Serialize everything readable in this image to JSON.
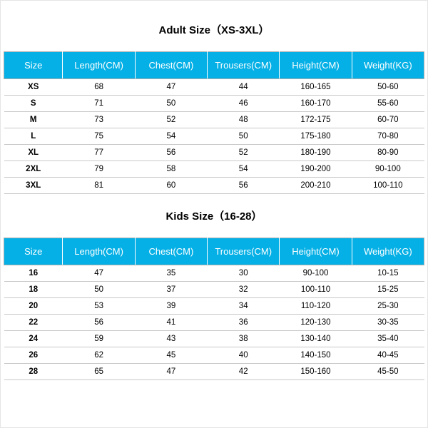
{
  "colors": {
    "header_bg": "#05b0e6",
    "header_text": "#ffffff",
    "border": "#b0b0b0",
    "row_border": "#c8c8c8",
    "text": "#000000",
    "bg": "#ffffff"
  },
  "adult": {
    "title": "Adult Size（XS-3XL）",
    "columns": [
      "Size",
      "Length(CM)",
      "Chest(CM)",
      "Trousers(CM)",
      "Height(CM)",
      "Weight(KG)"
    ],
    "rows": [
      [
        "XS",
        "68",
        "47",
        "44",
        "160-165",
        "50-60"
      ],
      [
        "S",
        "71",
        "50",
        "46",
        "160-170",
        "55-60"
      ],
      [
        "M",
        "73",
        "52",
        "48",
        "172-175",
        "60-70"
      ],
      [
        "L",
        "75",
        "54",
        "50",
        "175-180",
        "70-80"
      ],
      [
        "XL",
        "77",
        "56",
        "52",
        "180-190",
        "80-90"
      ],
      [
        "2XL",
        "79",
        "58",
        "54",
        "190-200",
        "90-100"
      ],
      [
        "3XL",
        "81",
        "60",
        "56",
        "200-210",
        "100-110"
      ]
    ]
  },
  "kids": {
    "title": "Kids Size（16-28）",
    "columns": [
      "Size",
      "Length(CM)",
      "Chest(CM)",
      "Trousers(CM)",
      "Height(CM)",
      "Weight(KG)"
    ],
    "rows": [
      [
        "16",
        "47",
        "35",
        "30",
        "90-100",
        "10-15"
      ],
      [
        "18",
        "50",
        "37",
        "32",
        "100-110",
        "15-25"
      ],
      [
        "20",
        "53",
        "39",
        "34",
        "110-120",
        "25-30"
      ],
      [
        "22",
        "56",
        "41",
        "36",
        "120-130",
        "30-35"
      ],
      [
        "24",
        "59",
        "43",
        "38",
        "130-140",
        "35-40"
      ],
      [
        "26",
        "62",
        "45",
        "40",
        "140-150",
        "40-45"
      ],
      [
        "28",
        "65",
        "47",
        "42",
        "150-160",
        "45-50"
      ]
    ]
  }
}
